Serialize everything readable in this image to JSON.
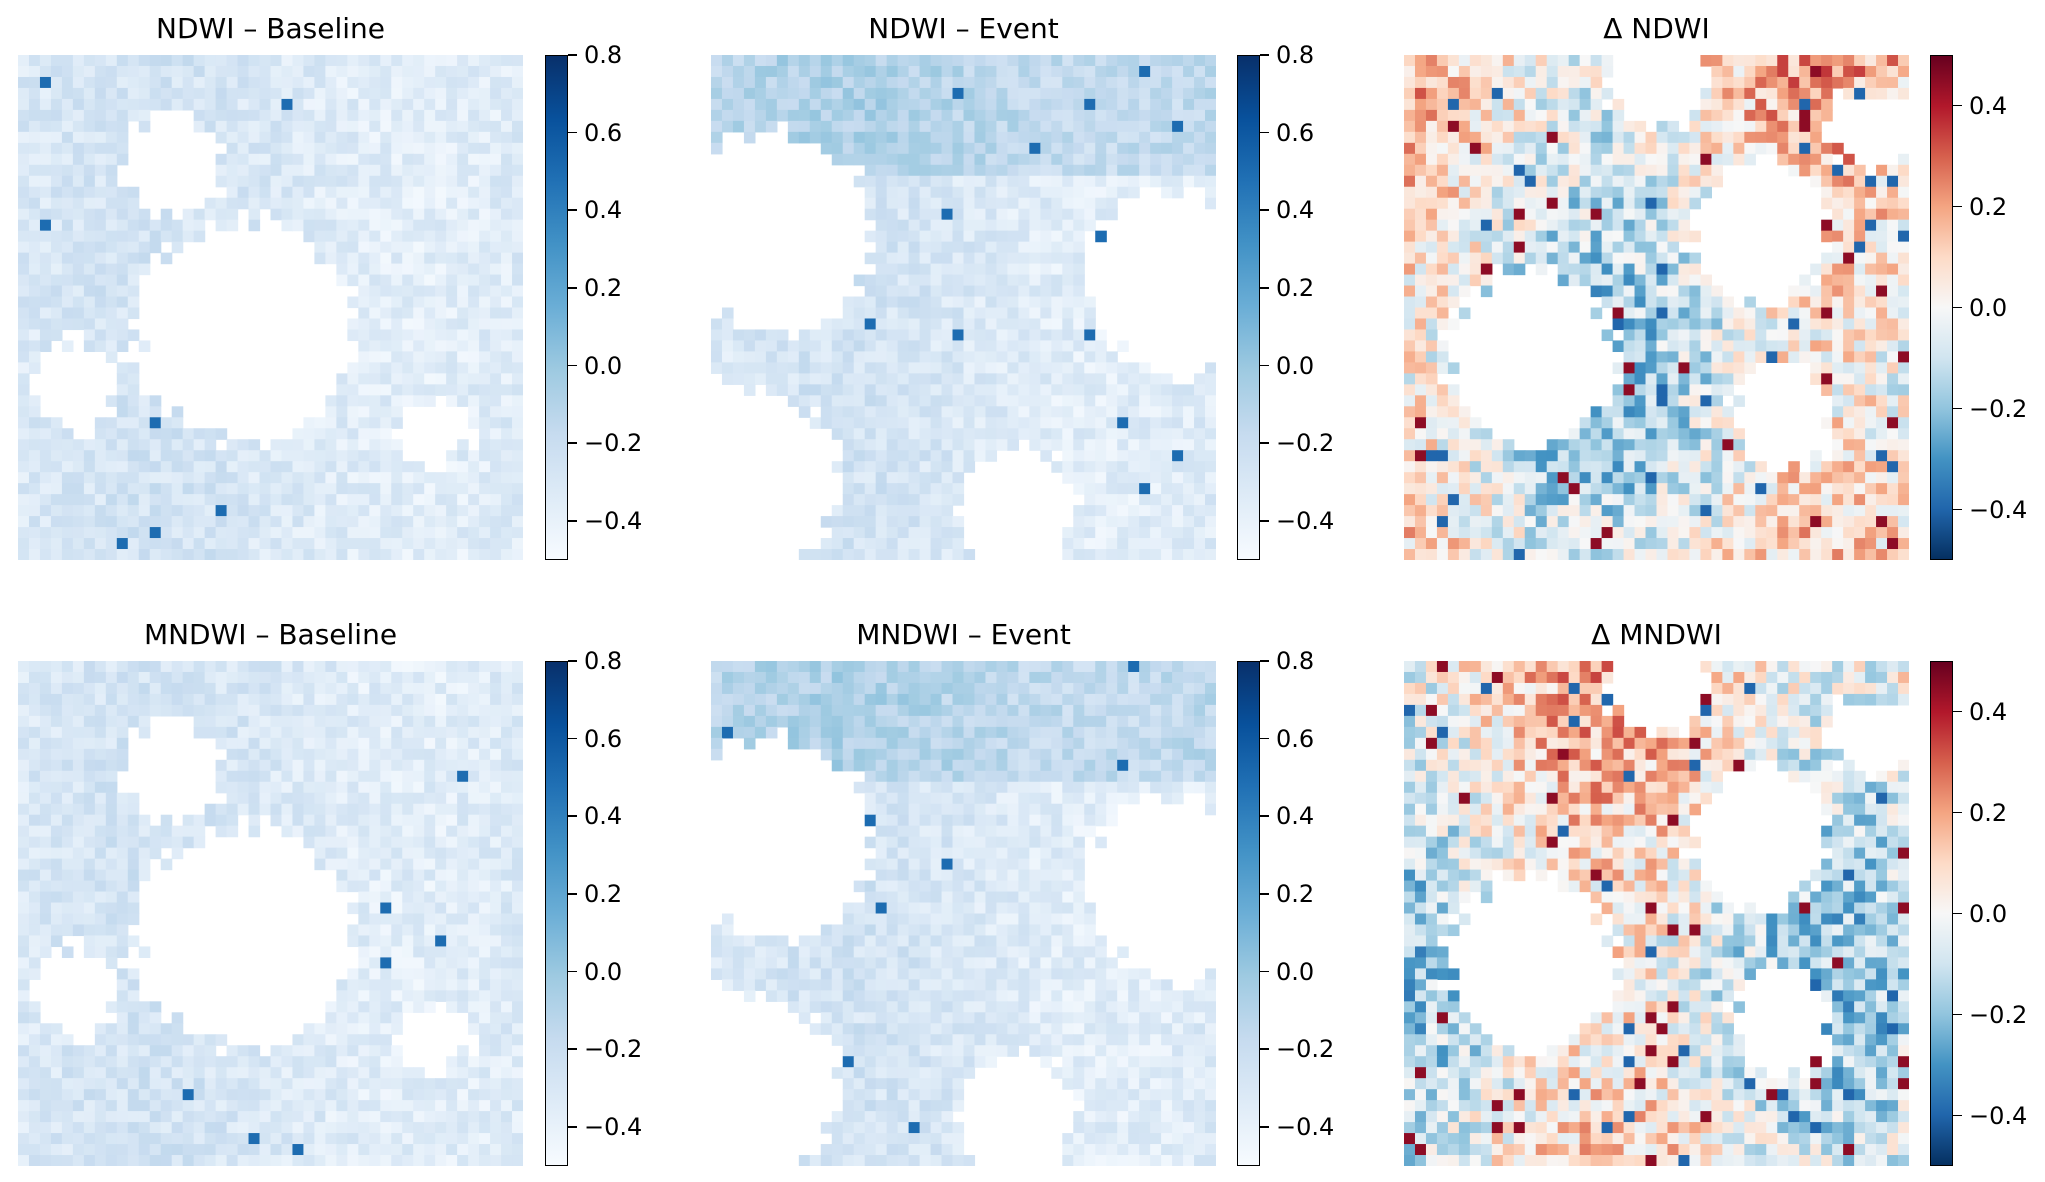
{
  "chart_data": [
    {
      "type": "heatmap",
      "title": "NDWI – Baseline",
      "colormap": "Blues",
      "colorbar_range": [
        -0.5,
        0.8
      ],
      "colorbar_ticks": [
        "0.8",
        "0.6",
        "0.4",
        "0.2",
        "0.0",
        "−0.2",
        "−0.4"
      ],
      "colorbar_tick_values": [
        0.8,
        0.6,
        0.4,
        0.2,
        0.0,
        -0.2,
        -0.4
      ],
      "colors": [
        "#f7fbff",
        "#deebf7",
        "#c6dbef",
        "#9ecae1",
        "#6baed6",
        "#4292c6",
        "#2171b5",
        "#08519c",
        "#08306b"
      ]
    },
    {
      "type": "heatmap",
      "title": "NDWI – Event",
      "colormap": "Blues",
      "colorbar_range": [
        -0.5,
        0.8
      ],
      "colorbar_ticks": [
        "0.8",
        "0.6",
        "0.4",
        "0.2",
        "0.0",
        "−0.2",
        "−0.4"
      ],
      "colorbar_tick_values": [
        0.8,
        0.6,
        0.4,
        0.2,
        0.0,
        -0.2,
        -0.4
      ],
      "colors": [
        "#f7fbff",
        "#deebf7",
        "#c6dbef",
        "#9ecae1",
        "#6baed6",
        "#4292c6",
        "#2171b5",
        "#08519c",
        "#08306b"
      ]
    },
    {
      "type": "heatmap",
      "title": "Δ NDWI",
      "colormap": "RdBu_r",
      "colorbar_range": [
        -0.5,
        0.5
      ],
      "colorbar_ticks": [
        "0.4",
        "0.2",
        "0.0",
        "−0.2",
        "−0.4"
      ],
      "colorbar_tick_values": [
        0.4,
        0.2,
        0.0,
        -0.2,
        -0.4
      ],
      "colors": [
        "#053061",
        "#2166ac",
        "#4393c3",
        "#92c5de",
        "#d1e5f0",
        "#f7f7f7",
        "#fddbc7",
        "#f4a582",
        "#d6604d",
        "#b2182b",
        "#67001f"
      ]
    },
    {
      "type": "heatmap",
      "title": "MNDWI – Baseline",
      "colormap": "Blues",
      "colorbar_range": [
        -0.5,
        0.8
      ],
      "colorbar_ticks": [
        "0.8",
        "0.6",
        "0.4",
        "0.2",
        "0.0",
        "−0.2",
        "−0.4"
      ],
      "colorbar_tick_values": [
        0.8,
        0.6,
        0.4,
        0.2,
        0.0,
        -0.2,
        -0.4
      ],
      "colors": [
        "#f7fbff",
        "#deebf7",
        "#c6dbef",
        "#9ecae1",
        "#6baed6",
        "#4292c6",
        "#2171b5",
        "#08519c",
        "#08306b"
      ]
    },
    {
      "type": "heatmap",
      "title": "MNDWI – Event",
      "colormap": "Blues",
      "colorbar_range": [
        -0.5,
        0.8
      ],
      "colorbar_ticks": [
        "0.8",
        "0.6",
        "0.4",
        "0.2",
        "0.0",
        "−0.2",
        "−0.4"
      ],
      "colorbar_tick_values": [
        0.8,
        0.6,
        0.4,
        0.2,
        0.0,
        -0.2,
        -0.4
      ],
      "colors": [
        "#f7fbff",
        "#deebf7",
        "#c6dbef",
        "#9ecae1",
        "#6baed6",
        "#4292c6",
        "#2171b5",
        "#08519c",
        "#08306b"
      ]
    },
    {
      "type": "heatmap",
      "title": "Δ MNDWI",
      "colormap": "RdBu_r",
      "colorbar_range": [
        -0.5,
        0.5
      ],
      "colorbar_ticks": [
        "0.4",
        "0.2",
        "0.0",
        "−0.2",
        "−0.4"
      ],
      "colorbar_tick_values": [
        0.4,
        0.2,
        0.0,
        -0.2,
        -0.4
      ],
      "colors": [
        "#053061",
        "#2166ac",
        "#4393c3",
        "#92c5de",
        "#d1e5f0",
        "#f7f7f7",
        "#fddbc7",
        "#f4a582",
        "#d6604d",
        "#b2182b",
        "#67001f"
      ]
    }
  ]
}
